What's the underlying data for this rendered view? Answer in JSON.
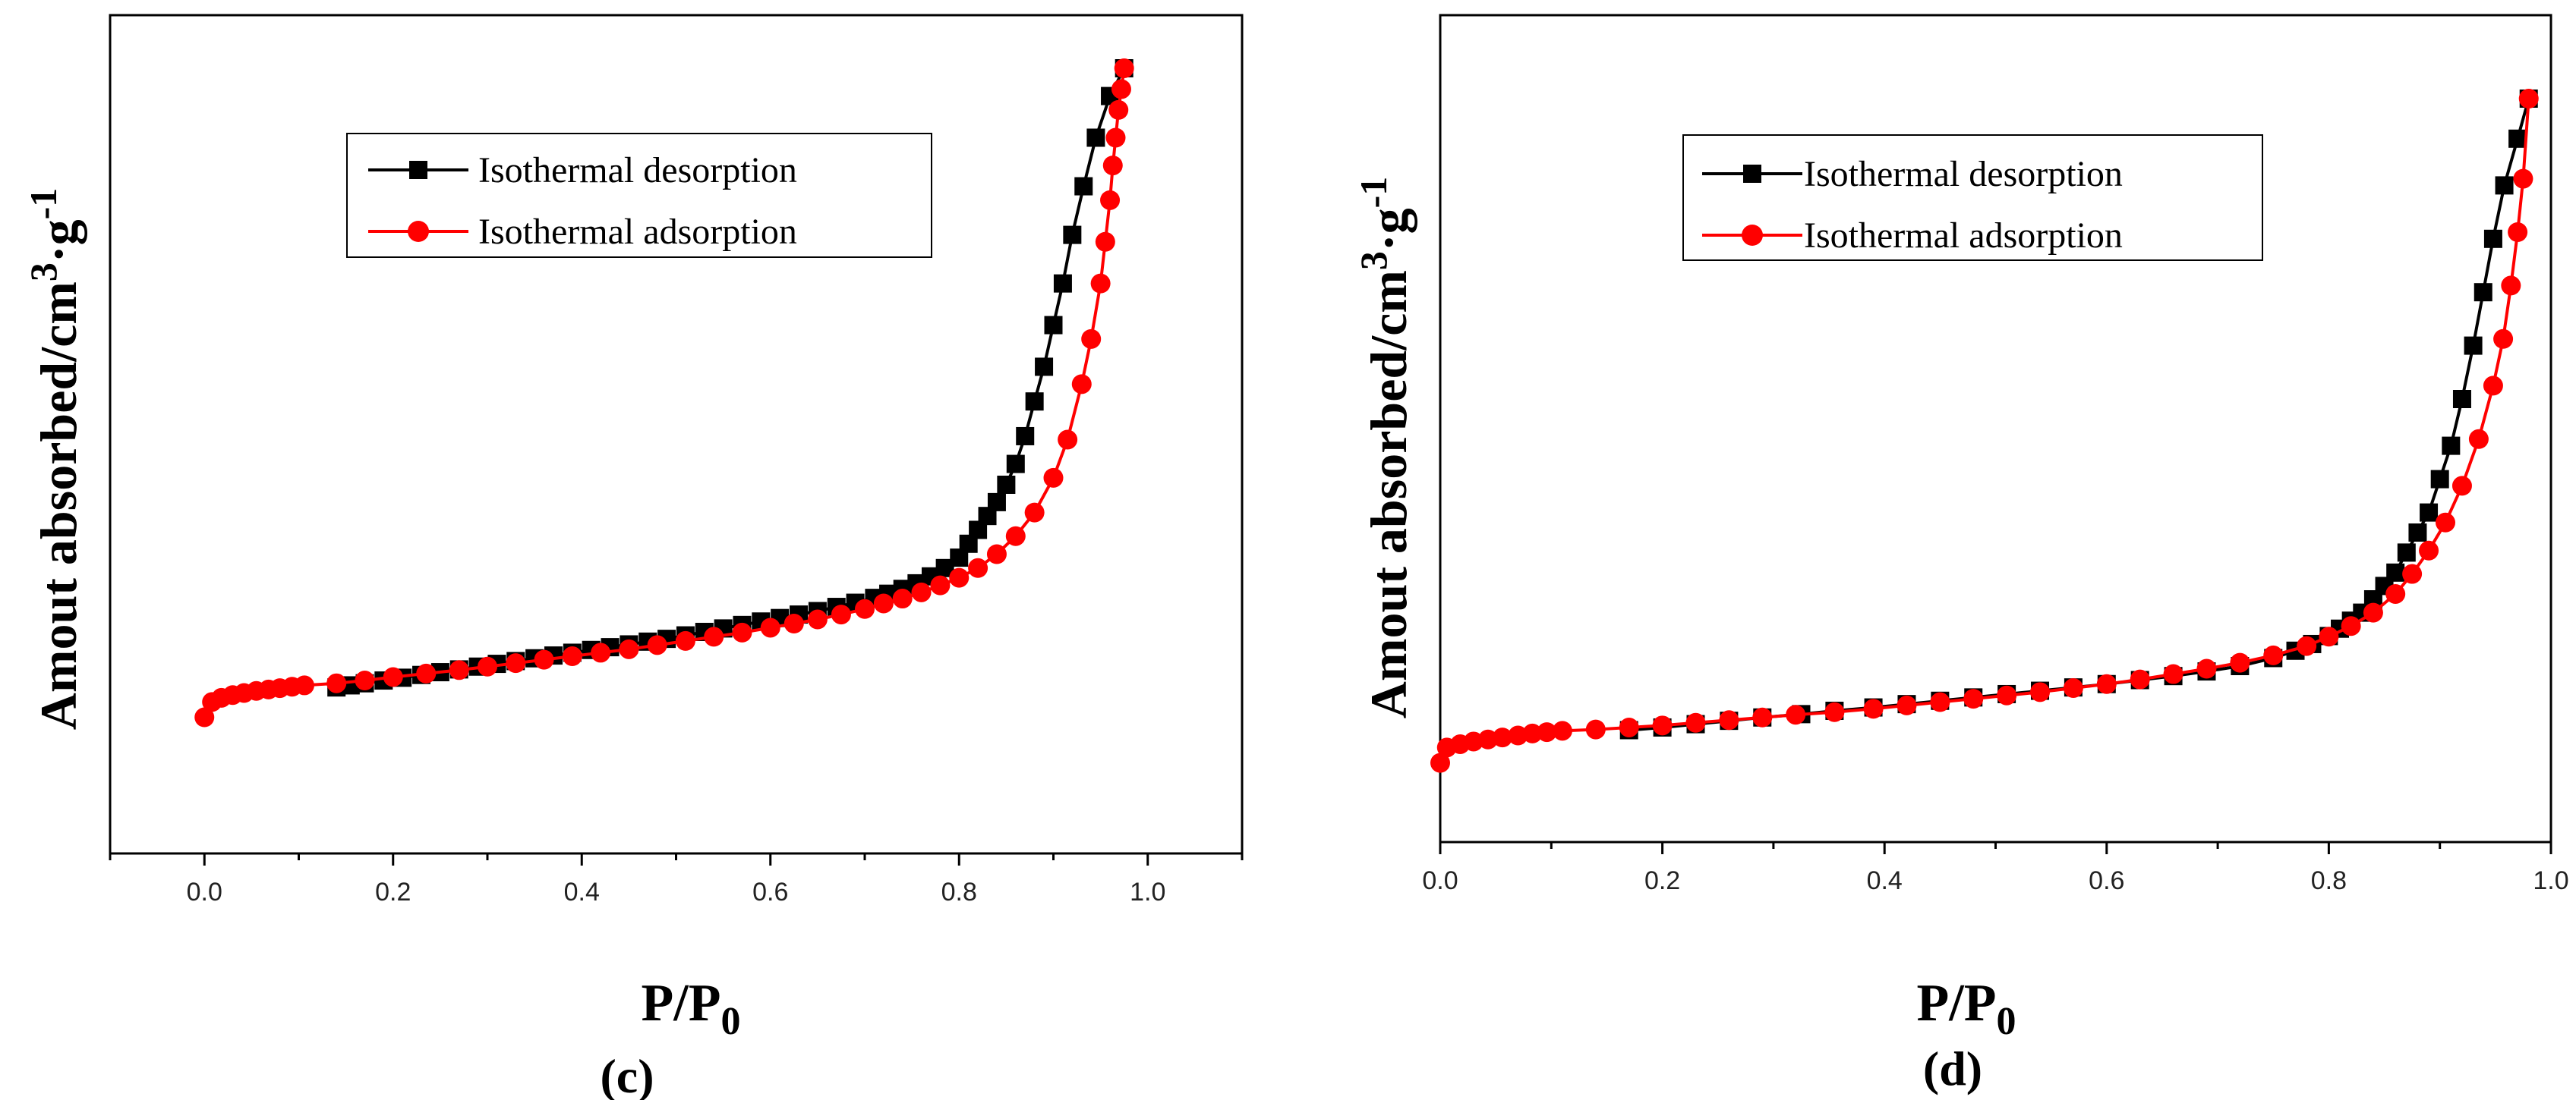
{
  "chart_data": [
    {
      "type": "line",
      "panel_label": "(c)",
      "xlabel": "P/P",
      "xlabel_sub": "0",
      "ylabel": "Amout absorbed/cm",
      "ylabel_sup1": "3",
      "ylabel_mid": "·g",
      "ylabel_sup2": "-1",
      "xlim": [
        -0.1,
        1.1
      ],
      "ylim": [
        0,
        100
      ],
      "xticks": [
        "0.0",
        "0.2",
        "0.4",
        "0.6",
        "0.8",
        "1.0"
      ],
      "yticks": [],
      "legend_position": "top-left",
      "series": [
        {
          "name": "Isothermal desorption",
          "color": "#000000",
          "marker": "square",
          "x": [
            0.975,
            0.96,
            0.945,
            0.932,
            0.92,
            0.91,
            0.9,
            0.89,
            0.88,
            0.87,
            0.86,
            0.85,
            0.84,
            0.83,
            0.82,
            0.81,
            0.8,
            0.785,
            0.77,
            0.755,
            0.74,
            0.725,
            0.71,
            0.69,
            0.67,
            0.65,
            0.63,
            0.61,
            0.59,
            0.57,
            0.55,
            0.53,
            0.51,
            0.49,
            0.47,
            0.45,
            0.43,
            0.41,
            0.39,
            0.37,
            0.35,
            0.33,
            0.31,
            0.29,
            0.27,
            0.25,
            0.23,
            0.21,
            0.19,
            0.17,
            0.155,
            0.14
          ],
          "y": [
            100,
            96,
            90,
            83,
            76,
            69,
            63,
            57,
            52,
            47,
            43,
            40,
            37.5,
            35.5,
            33.5,
            31.5,
            29.5,
            28,
            26.8,
            25.8,
            25,
            24.3,
            23.7,
            23,
            22.4,
            21.8,
            21.3,
            20.8,
            20.3,
            19.8,
            19.3,
            18.8,
            18.3,
            17.8,
            17.4,
            17,
            16.6,
            16.2,
            15.8,
            15.4,
            15,
            14.6,
            14.2,
            13.8,
            13.4,
            13,
            12.6,
            12.2,
            11.8,
            11.4,
            11.1,
            10.8
          ]
        },
        {
          "name": "Isothermal adsorption",
          "color": "#ff0000",
          "marker": "circle",
          "x": [
            0.0,
            0.008,
            0.018,
            0.03,
            0.042,
            0.055,
            0.068,
            0.08,
            0.093,
            0.106,
            0.14,
            0.17,
            0.2,
            0.235,
            0.27,
            0.3,
            0.33,
            0.36,
            0.39,
            0.42,
            0.45,
            0.48,
            0.51,
            0.54,
            0.57,
            0.6,
            0.625,
            0.65,
            0.675,
            0.7,
            0.72,
            0.74,
            0.76,
            0.78,
            0.8,
            0.82,
            0.84,
            0.86,
            0.88,
            0.9,
            0.915,
            0.93,
            0.94,
            0.95,
            0.955,
            0.96,
            0.963,
            0.966,
            0.969,
            0.972,
            0.975
          ],
          "y": [
            6.5,
            8.7,
            9.3,
            9.7,
            10,
            10.3,
            10.5,
            10.7,
            10.9,
            11.1,
            11.4,
            11.8,
            12.3,
            12.8,
            13.3,
            13.8,
            14.3,
            14.8,
            15.3,
            15.8,
            16.3,
            16.9,
            17.5,
            18.1,
            18.7,
            19.4,
            20,
            20.6,
            21.3,
            22.1,
            22.9,
            23.6,
            24.5,
            25.5,
            26.6,
            28,
            30,
            32.6,
            36,
            41,
            46.5,
            54.5,
            61,
            69,
            75,
            81,
            86,
            90,
            94,
            97,
            100
          ]
        }
      ]
    },
    {
      "type": "line",
      "panel_label": "(d)",
      "xlabel": "P/P",
      "xlabel_sub": "0",
      "ylabel": "Amout absorbed/cm",
      "ylabel_sup1": "3",
      "ylabel_mid": "·g",
      "ylabel_sup2": "-1",
      "xlim": [
        0.0,
        1.0
      ],
      "ylim": [
        0,
        100
      ],
      "xticks": [
        "0.0",
        "0.2",
        "0.4",
        "0.6",
        "0.8",
        "1.0"
      ],
      "yticks": [],
      "legend_position": "top-left",
      "series": [
        {
          "name": "Isothermal desorption",
          "color": "#000000",
          "marker": "square",
          "x": [
            0.98,
            0.97,
            0.958,
            0.948,
            0.939,
            0.93,
            0.92,
            0.91,
            0.9,
            0.89,
            0.88,
            0.87,
            0.86,
            0.85,
            0.84,
            0.83,
            0.82,
            0.81,
            0.8,
            0.785,
            0.77,
            0.75,
            0.72,
            0.69,
            0.66,
            0.63,
            0.6,
            0.57,
            0.54,
            0.51,
            0.48,
            0.45,
            0.42,
            0.39,
            0.355,
            0.325,
            0.29,
            0.26,
            0.23,
            0.2,
            0.17
          ],
          "y": [
            100,
            94,
            87,
            79,
            71,
            63,
            55,
            48,
            43,
            38,
            35,
            32,
            29,
            27,
            25,
            23,
            21.8,
            20.6,
            19.5,
            18.3,
            17.3,
            16.2,
            15,
            14.2,
            13.5,
            12.9,
            12.3,
            11.8,
            11.3,
            10.8,
            10.3,
            9.8,
            9.3,
            8.8,
            8.3,
            7.8,
            7.3,
            6.8,
            6.3,
            5.8,
            5.4
          ]
        },
        {
          "name": "Isothermal adsorption",
          "color": "#ff0000",
          "marker": "circle",
          "x": [
            0.0,
            0.006,
            0.018,
            0.03,
            0.043,
            0.056,
            0.07,
            0.083,
            0.096,
            0.11,
            0.14,
            0.17,
            0.2,
            0.23,
            0.26,
            0.29,
            0.32,
            0.355,
            0.39,
            0.42,
            0.45,
            0.48,
            0.51,
            0.54,
            0.57,
            0.6,
            0.63,
            0.66,
            0.69,
            0.72,
            0.75,
            0.78,
            0.8,
            0.82,
            0.84,
            0.86,
            0.875,
            0.89,
            0.905,
            0.92,
            0.935,
            0.948,
            0.957,
            0.964,
            0.97,
            0.975,
            0.98
          ],
          "y": [
            0.5,
            2.8,
            3.3,
            3.7,
            4,
            4.3,
            4.6,
            4.9,
            5.1,
            5.3,
            5.5,
            5.8,
            6.1,
            6.5,
            6.9,
            7.3,
            7.7,
            8.1,
            8.6,
            9.1,
            9.6,
            10.1,
            10.6,
            11.1,
            11.7,
            12.3,
            13,
            13.8,
            14.6,
            15.5,
            16.6,
            18,
            19.4,
            21,
            23,
            25.8,
            28.8,
            32.3,
            36.5,
            42,
            49,
            57,
            64,
            72,
            80,
            88,
            100
          ]
        }
      ]
    }
  ]
}
